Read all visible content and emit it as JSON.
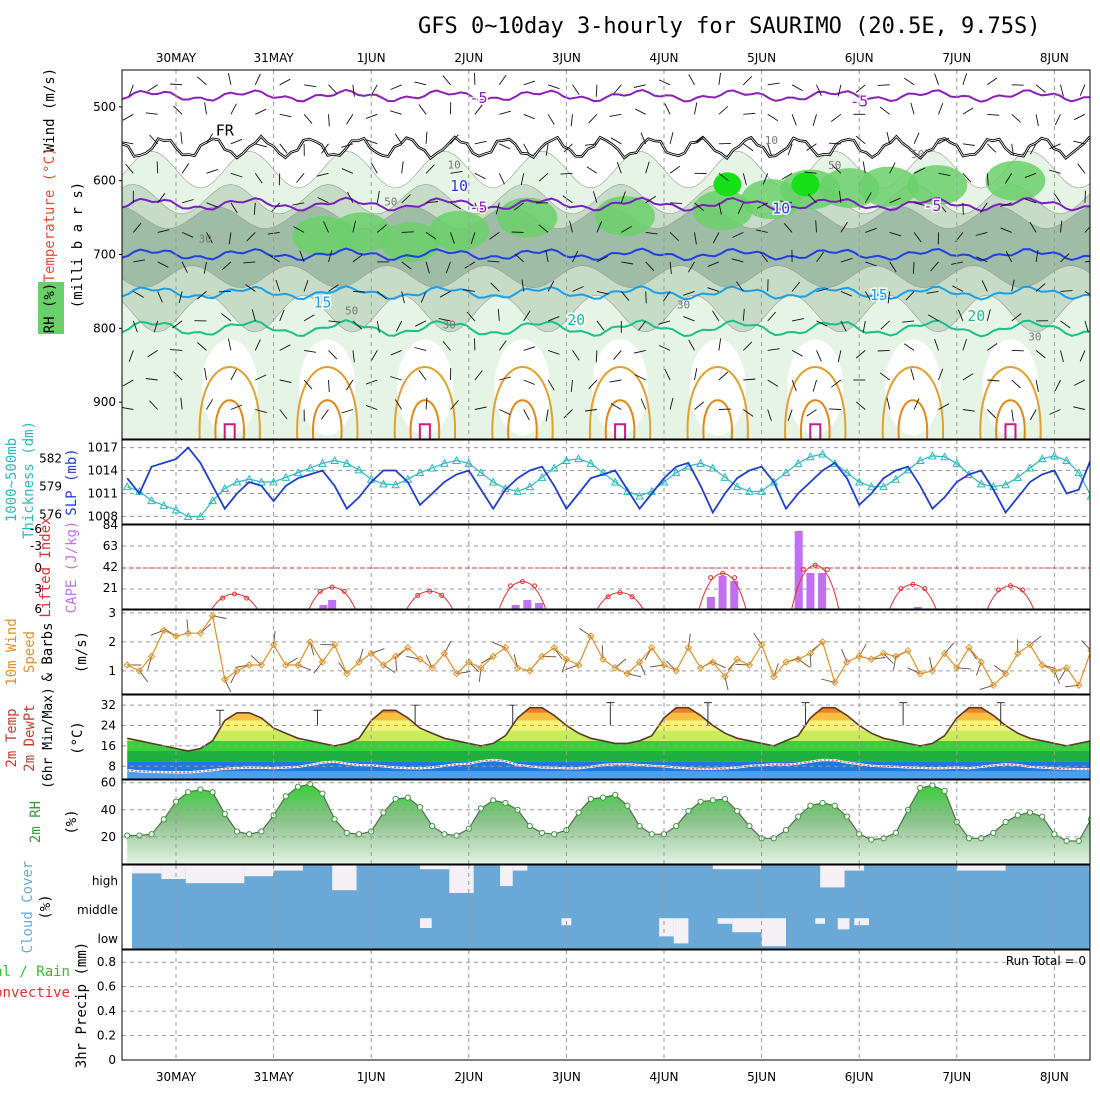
{
  "title": "GFS 0~10day 3-hourly for SAURIMO (20.5E, 9.75S)",
  "colors": {
    "rh_light": "#e6f4e6",
    "rh_mid": "#c7dcc7",
    "rh_dark": "#9fbca7",
    "rh_green": "#6ad06a",
    "rh_bright": "#18e018",
    "temp_minus5": "#8c1fb8",
    "temp_5": "#7a1fc0",
    "temp_10": "#2040e0",
    "temp_15": "#1aa0e8",
    "temp_20": "#18c08a",
    "temp_25": "#e0a030",
    "temp_30": "#e08818",
    "temp_35": "#d01880",
    "slp": "#1f3fd0",
    "thickness": "#2ab8c0",
    "cape": "#c070f0",
    "li": "#e03030",
    "wind": "#e0902a",
    "temp_line": "#5a3a2a",
    "dew_line": "#c04040",
    "rh2m": "#3a9a3a",
    "cloud": "#6aa8d8",
    "precip_total": "#30c030"
  },
  "chart_data": [
    {
      "panel": "cross-section",
      "type": "contour",
      "xlabel": "",
      "day_labels": [
        "30MAY",
        "31MAY",
        "1JUN",
        "2JUN",
        "3JUN",
        "4JUN",
        "5JUN",
        "6JUN",
        "7JUN",
        "8JUN"
      ],
      "ylabel_parts": [
        "Wind (m/s)",
        "Temperature (°C)",
        "RH (%)"
      ],
      "yunit": "(milli b a r s)",
      "yticks": [
        500,
        600,
        700,
        800,
        900
      ],
      "ylim": [
        450,
        950
      ],
      "contour_labels": [
        {
          "text": "-5",
          "level": -5,
          "x_day": 3.1,
          "p": 488
        },
        {
          "text": "-5",
          "level": -5,
          "x_day": 7.0,
          "p": 493
        },
        {
          "text": "FR",
          "level": 0,
          "x_day": 0.5,
          "p": 532
        },
        {
          "text": "-5",
          "level": -5,
          "x_day": 3.1,
          "p": 636
        },
        {
          "text": "-5",
          "level": -5,
          "x_day": 7.75,
          "p": 634
        },
        {
          "text": "15",
          "level": 15,
          "x_day": 1.5,
          "p": 765
        },
        {
          "text": "15",
          "level": 15,
          "x_day": 7.2,
          "p": 755
        },
        {
          "text": "20",
          "level": 20,
          "x_day": 4.1,
          "p": 789
        },
        {
          "text": "20",
          "level": 20,
          "x_day": 8.2,
          "p": 783
        },
        {
          "text": "10",
          "level": 10,
          "x_day": 2.9,
          "p": 607
        },
        {
          "text": "10",
          "level": 10,
          "x_day": 6.2,
          "p": 638
        }
      ],
      "rh_contour_labels": [
        {
          "text": "10",
          "x_day": 2.85,
          "p": 578
        },
        {
          "text": "10",
          "x_day": 6.1,
          "p": 545
        },
        {
          "text": "30",
          "x_day": 0.3,
          "p": 678
        },
        {
          "text": "50",
          "x_day": 2.2,
          "p": 628
        },
        {
          "text": "50",
          "x_day": 1.8,
          "p": 776
        },
        {
          "text": "30",
          "x_day": 2.8,
          "p": 795
        },
        {
          "text": "30",
          "x_day": 5.2,
          "p": 768
        },
        {
          "text": "50",
          "x_day": 6.75,
          "p": 579
        },
        {
          "text": "50",
          "x_day": 7.6,
          "p": 564
        },
        {
          "text": "30",
          "x_day": 8.8,
          "p": 811
        }
      ]
    },
    {
      "panel": "slp-thickness",
      "type": "line",
      "ylabel_left": [
        "1000~500mb",
        "Thickness (dm)"
      ],
      "ylabel_right": "SLP (mb)",
      "thickness_ticks": [
        576,
        579,
        582
      ],
      "slp_ticks": [
        1008,
        1011,
        1014,
        1017
      ],
      "thickness_lim": [
        575,
        584
      ],
      "slp_lim": [
        1007,
        1018
      ],
      "series": [
        {
          "name": "SLP",
          "axis": "right",
          "values": [
            1013,
            1011,
            1014.5,
            1015,
            1015.5,
            1017,
            1015,
            1012,
            1009,
            1011,
            1012.5,
            1012,
            1010,
            1012,
            1013,
            1013.5,
            1014,
            1012,
            1009,
            1010.5,
            1012.5,
            1014,
            1014,
            1012.5,
            1009.5,
            1011,
            1012.5,
            1013.5,
            1014,
            1011.5,
            1009,
            1011.5,
            1013,
            1014,
            1014.5,
            1012,
            1009,
            1011,
            1013,
            1013.5,
            1014,
            1011.5,
            1009,
            1011,
            1013,
            1014.5,
            1015,
            1012,
            1008.5,
            1011,
            1013,
            1014,
            1014.5,
            1012.5,
            1009,
            1011,
            1012.5,
            1014,
            1015,
            1013,
            1009.5,
            1011,
            1013,
            1014,
            1014.5,
            1012,
            1009,
            1010.5,
            1012.5,
            1013.5,
            1014,
            1011.5,
            1008.5,
            1010.5,
            1012.5,
            1013.5,
            1014,
            1011,
            1011.5,
            1015.5
          ]
        },
        {
          "name": "1000~500mb Thickness",
          "axis": "left",
          "values": [
            579,
            578.5,
            577.5,
            577,
            576.5,
            575.8,
            575.8,
            577.5,
            578.8,
            579.5,
            579.8,
            579.5,
            579.5,
            580,
            580.5,
            581,
            581.5,
            581.8,
            581.5,
            580.8,
            579.8,
            579.3,
            579.2,
            579.8,
            580.5,
            581,
            581.5,
            581.8,
            581.5,
            580.5,
            579.5,
            578.8,
            578.5,
            579,
            580,
            581,
            581.8,
            582,
            581.5,
            580.5,
            579.5,
            578.5,
            578,
            578.5,
            579.5,
            580.5,
            581.2,
            581.5,
            581,
            580,
            579,
            578.5,
            578.5,
            579.5,
            580.5,
            581.5,
            582.2,
            582.5,
            581.5,
            580.5,
            579.5,
            579,
            579,
            579.8,
            580.8,
            581.8,
            582.3,
            582.2,
            581.5,
            580.3,
            579.3,
            579,
            579.2,
            580,
            581,
            582,
            582.3,
            581.8,
            580.5,
            578
          ]
        }
      ]
    },
    {
      "panel": "cape-li",
      "type": "bar+line",
      "ylabel_left": "Lifted Index",
      "ylabel_right": "CAPE (J/kg)",
      "li_ticks": [
        "-6",
        "-3",
        "0",
        "3",
        "6"
      ],
      "cape_ticks": [
        21,
        42,
        63,
        84
      ],
      "cape_lim": [
        0,
        84
      ],
      "cape_bars": [
        {
          "day": 1.51,
          "value": 4
        },
        {
          "day": 1.6,
          "value": 9
        },
        {
          "day": 3.48,
          "value": 4
        },
        {
          "day": 3.6,
          "value": 9
        },
        {
          "day": 3.72,
          "value": 6
        },
        {
          "day": 5.48,
          "value": 12
        },
        {
          "day": 5.6,
          "value": 33
        },
        {
          "day": 5.72,
          "value": 28
        },
        {
          "day": 6.38,
          "value": 78
        },
        {
          "day": 6.5,
          "value": 36
        },
        {
          "day": 6.62,
          "value": 36
        },
        {
          "day": 7.6,
          "value": 2
        }
      ],
      "li_peaks": [
        {
          "day": 0.6,
          "li": 3.8
        },
        {
          "day": 1.6,
          "li": 2.8
        },
        {
          "day": 2.6,
          "li": 3.4
        },
        {
          "day": 3.55,
          "li": 2.0
        },
        {
          "day": 4.55,
          "li": 3.6
        },
        {
          "day": 5.6,
          "li": 0.8
        },
        {
          "day": 6.55,
          "li": -0.4
        },
        {
          "day": 7.55,
          "li": 2.4
        },
        {
          "day": 8.55,
          "li": 2.6
        }
      ]
    },
    {
      "panel": "wind10m",
      "type": "line",
      "ylabel": [
        "10m Wind",
        "Speed",
        "& Barbs"
      ],
      "yunit": "(m/s)",
      "yticks": [
        1,
        2,
        3
      ],
      "ylim": [
        0.2,
        3.1
      ],
      "values": [
        1.2,
        1.0,
        1.5,
        2.4,
        2.2,
        2.3,
        2.3,
        2.9,
        0.7,
        1.0,
        1.2,
        1.2,
        1.9,
        1.2,
        1.2,
        2.0,
        1.3,
        1.9,
        0.9,
        1.3,
        1.6,
        1.2,
        1.5,
        1.8,
        1.4,
        1.1,
        1.6,
        0.9,
        1.3,
        1.1,
        1.5,
        1.8,
        1.1,
        1.0,
        1.5,
        1.8,
        1.4,
        1.2,
        2.2,
        1.4,
        1.1,
        0.9,
        1.3,
        1.8,
        1.2,
        1.0,
        1.8,
        1.1,
        1.3,
        0.8,
        1.4,
        1.2,
        1.9,
        0.8,
        1.3,
        1.4,
        1.6,
        2.0,
        0.6,
        1.3,
        1.5,
        1.4,
        1.6,
        1.5,
        1.7,
        0.9,
        1.0,
        1.6,
        1.1,
        1.8,
        1.3,
        0.5,
        0.9,
        1.6,
        1.9,
        1.2,
        1.0,
        1.1,
        0.5,
        1.7
      ]
    },
    {
      "panel": "temp2m",
      "type": "area",
      "ylabel": [
        "2m Temp",
        "2m DewPt",
        "(6hr Min/Max)"
      ],
      "yunit": "(°C)",
      "yticks": [
        8,
        16,
        24,
        32
      ],
      "ylim": [
        3,
        36
      ],
      "temp": [
        19,
        18,
        17,
        16,
        15,
        14,
        15,
        18,
        26,
        29,
        29,
        27,
        23,
        21,
        19,
        18,
        17,
        16,
        17,
        19,
        26,
        30,
        30,
        27,
        23,
        21,
        19,
        18,
        17,
        16,
        17,
        20,
        27,
        31,
        31,
        28,
        24,
        21,
        19,
        18,
        17,
        17,
        18,
        20,
        27,
        31,
        31,
        28,
        24,
        21,
        19,
        18,
        17,
        16,
        18,
        20,
        27,
        31,
        31,
        28,
        24,
        21,
        19,
        18,
        17,
        16,
        17,
        20,
        27,
        31,
        31,
        28,
        24,
        21,
        19,
        18,
        17,
        16,
        17,
        18
      ],
      "dewpoint": [
        6.5,
        6,
        5.8,
        5.7,
        5.6,
        5.6,
        6,
        6.5,
        7,
        7.3,
        7.5,
        7.4,
        7.3,
        7.5,
        7.8,
        8.5,
        9.5,
        9.8,
        9,
        8.5,
        8.4,
        8,
        7.5,
        7.3,
        7.2,
        7.5,
        8.2,
        8.8,
        9,
        10,
        10.5,
        10,
        8.5,
        8,
        7.5,
        7.4,
        7.2,
        7.2,
        7.8,
        8.5,
        8.8,
        8.8,
        8.5,
        8.2,
        8,
        7.5,
        7.2,
        7,
        7,
        7.2,
        7.5,
        8.2,
        8.4,
        8.8,
        8.6,
        9,
        9.8,
        10.5,
        10.4,
        9.5,
        8.8,
        8.2,
        8,
        7.8,
        7.5,
        7.4,
        7.2,
        7.3,
        7.5,
        7.2,
        7.8,
        8.3,
        8.8,
        8.5,
        7.8,
        7.5,
        7.2,
        7,
        6.9,
        6.9
      ],
      "max_whiskers": [
        {
          "day": 0.45,
          "max": 30
        },
        {
          "day": 1.45,
          "max": 30
        },
        {
          "day": 2.45,
          "max": 32
        },
        {
          "day": 3.45,
          "max": 32
        },
        {
          "day": 4.45,
          "max": 33
        },
        {
          "day": 5.45,
          "max": 33
        },
        {
          "day": 6.45,
          "max": 33
        },
        {
          "day": 7.45,
          "max": 33
        },
        {
          "day": 8.45,
          "max": 33
        }
      ]
    },
    {
      "panel": "rh2m",
      "type": "area",
      "ylabel": "2m RH",
      "yunit": "(%)",
      "yticks": [
        20,
        40,
        60
      ],
      "ylim": [
        0,
        62
      ],
      "values": [
        21,
        21,
        22,
        33,
        46,
        53,
        55,
        53,
        37,
        24,
        22,
        24,
        36,
        50,
        57,
        59,
        52,
        33,
        23,
        22,
        24,
        38,
        48,
        49,
        42,
        28,
        22,
        21,
        26,
        41,
        47,
        45,
        40,
        28,
        23,
        22,
        25,
        38,
        48,
        49,
        51,
        43,
        28,
        22,
        22,
        28,
        39,
        46,
        47,
        48,
        39,
        28,
        19,
        19,
        25,
        35,
        43,
        45,
        43,
        35,
        22,
        18,
        19,
        23,
        40,
        56,
        58,
        54,
        31,
        19,
        19,
        23,
        31,
        36,
        38,
        35,
        22,
        17,
        17,
        33
      ]
    },
    {
      "panel": "cloud",
      "type": "bar",
      "ylabel": "Cloud Cover",
      "yunit": "(%)",
      "levels": [
        "high",
        "middle",
        "low"
      ],
      "high_white_segments": [
        {
          "start": 0.0,
          "end": 0.35,
          "depth": 0.3
        },
        {
          "start": 0.35,
          "end": 0.6,
          "depth": 0.5
        },
        {
          "start": 0.6,
          "end": 1.2,
          "depth": 0.65
        },
        {
          "start": 1.2,
          "end": 1.5,
          "depth": 0.4
        },
        {
          "start": 1.5,
          "end": 1.8,
          "depth": 0.2
        },
        {
          "start": 2.1,
          "end": 2.35,
          "depth": 0.9
        },
        {
          "start": 3.0,
          "end": 3.3,
          "depth": 0.15
        },
        {
          "start": 3.3,
          "end": 3.55,
          "depth": 1.0
        },
        {
          "start": 3.82,
          "end": 3.95,
          "depth": 0.75
        },
        {
          "start": 3.95,
          "end": 4.1,
          "depth": 0.2
        },
        {
          "start": 6.0,
          "end": 6.5,
          "depth": 0.15
        },
        {
          "start": 7.1,
          "end": 7.35,
          "depth": 0.8
        },
        {
          "start": 7.35,
          "end": 7.55,
          "depth": 0.2
        },
        {
          "start": 8.5,
          "end": 9.0,
          "depth": 0.2
        }
      ],
      "middle_white_segments": [
        {
          "start": 3.0,
          "end": 3.12,
          "depth": 0.35
        },
        {
          "start": 4.45,
          "end": 4.55,
          "depth": 0.25
        },
        {
          "start": 5.45,
          "end": 5.6,
          "depth": 0.65
        },
        {
          "start": 5.6,
          "end": 5.75,
          "depth": 0.9
        },
        {
          "start": 6.05,
          "end": 6.2,
          "depth": 0.2
        },
        {
          "start": 6.2,
          "end": 6.5,
          "depth": 0.5
        },
        {
          "start": 6.5,
          "end": 6.75,
          "depth": 1.0
        },
        {
          "start": 7.05,
          "end": 7.15,
          "depth": 0.2
        },
        {
          "start": 7.28,
          "end": 7.4,
          "depth": 0.4
        },
        {
          "start": 7.45,
          "end": 7.6,
          "depth": 0.25
        }
      ]
    },
    {
      "panel": "precip",
      "type": "bar",
      "ylabel_left": [
        "Total / Rain",
        "Convective"
      ],
      "ylabel_right": "3hr Precip (mm)",
      "yticks": [
        "0",
        "0.2",
        "0.4",
        "0.6",
        "0.8"
      ],
      "ylim": [
        0,
        0.9
      ],
      "run_total": "Run Total = 0",
      "values": []
    }
  ]
}
